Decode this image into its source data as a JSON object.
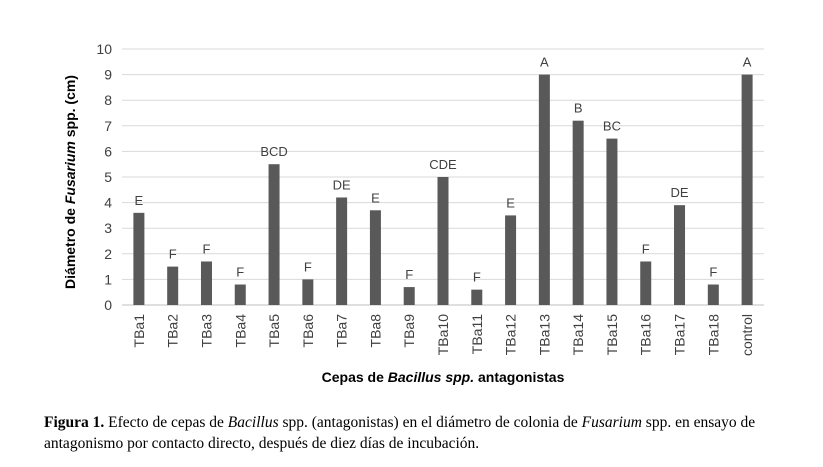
{
  "chart_data": {
    "type": "bar",
    "categories": [
      "TBa1",
      "TBa2",
      "TBa3",
      "TBa4",
      "TBa5",
      "TBa6",
      "TBa7",
      "TBa8",
      "TBa9",
      "TBa10",
      "TBa11",
      "TBa12",
      "TBa13",
      "TBa14",
      "TBa15",
      "TBa16",
      "TBa17",
      "TBa18",
      "control"
    ],
    "values": [
      3.6,
      1.5,
      1.7,
      0.8,
      5.5,
      1.0,
      4.2,
      3.7,
      0.7,
      5.0,
      0.6,
      3.5,
      9.0,
      7.2,
      6.5,
      1.7,
      3.9,
      0.8,
      9.0
    ],
    "bar_labels": [
      "E",
      "F",
      "F",
      "F",
      "BCD",
      "F",
      "DE",
      "E",
      "F",
      "CDE",
      "F",
      "E",
      "A",
      "B",
      "BC",
      "F",
      "DE",
      "F",
      "A"
    ],
    "ylabel_parts": [
      "Diámetro de ",
      "Fusarium",
      " spp. (cm)"
    ],
    "xlabel_parts": [
      "Cepas de ",
      "Bacillus spp.",
      " antagonistas"
    ],
    "ylim": [
      0,
      10
    ],
    "yticks": [
      0,
      1,
      2,
      3,
      4,
      5,
      6,
      7,
      8,
      9,
      10
    ],
    "grid": true,
    "bar_color": "#595959",
    "grid_color": "#d9d9d9"
  },
  "caption": {
    "label": "Figura 1.",
    "parts": [
      {
        "text": " Efecto de cepas de ",
        "italic": false
      },
      {
        "text": "Bacillus",
        "italic": true
      },
      {
        "text": " spp. (antagonistas) en el diámetro de colonia de ",
        "italic": false
      },
      {
        "text": "Fusarium",
        "italic": true
      },
      {
        "text": " spp. en ensayo de antagonismo por contacto directo, después de diez días de incubación.",
        "italic": false
      }
    ]
  }
}
